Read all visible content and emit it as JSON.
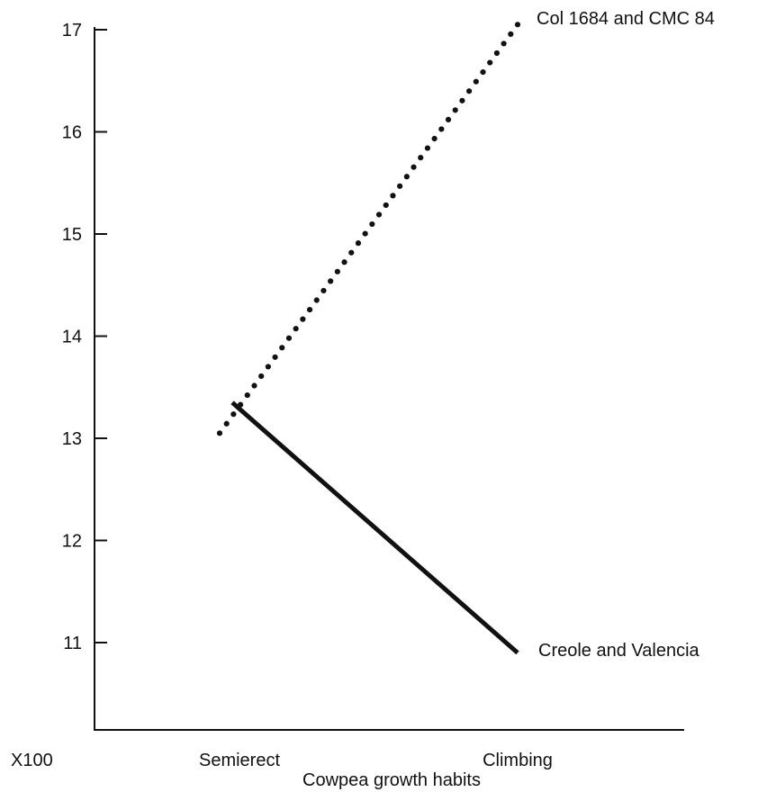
{
  "chart_data": {
    "type": "line",
    "title": "",
    "xlabel": "Cowpea growth habits",
    "ylabel": "",
    "y_unit_label": "X100",
    "categories": [
      "Semierect",
      "Climbing"
    ],
    "yticks": [
      11,
      12,
      13,
      14,
      15,
      16,
      17
    ],
    "ylim": [
      10.1,
      17.1
    ],
    "grid": false,
    "series": [
      {
        "name": "Col 1684 and CMC 84",
        "style": "dotted",
        "values": [
          13.05,
          17.05
        ]
      },
      {
        "name": "Creole and Valencia",
        "style": "solid",
        "values": [
          13.35,
          10.9
        ]
      }
    ]
  }
}
